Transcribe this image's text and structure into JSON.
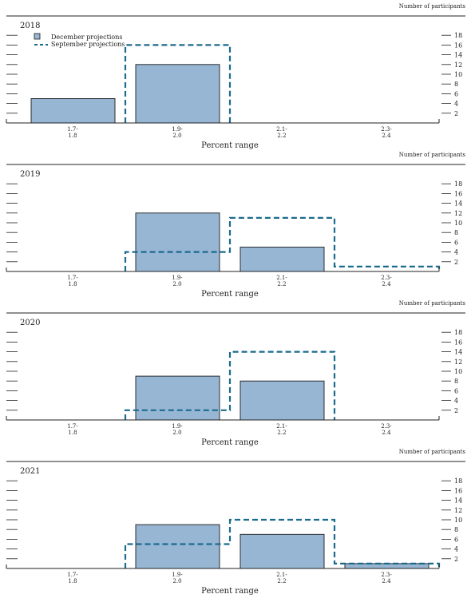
{
  "y_axis_label": "Number of participants",
  "x_axis_label": "Percent range",
  "legend": {
    "december": "December projections",
    "september": "September projections"
  },
  "colors": {
    "december_fill": "#97B6D4",
    "september_line": "#1B6B8E",
    "bar_stroke": "#1a1a1a"
  },
  "chart_data": [
    {
      "type": "bar",
      "title": "2018",
      "categories": [
        "1.7-\n1.8",
        "1.9-\n2.0",
        "2.1-\n2.2",
        "2.3-\n2.4"
      ],
      "series": [
        {
          "name": "December projections",
          "values": [
            5,
            12,
            0,
            0
          ]
        },
        {
          "name": "September projections",
          "values": [
            0,
            16,
            0,
            0
          ]
        }
      ],
      "xlabel": "Percent range",
      "ylabel": "Number of participants",
      "yticks": [
        2,
        4,
        6,
        8,
        10,
        12,
        14,
        16,
        18
      ],
      "ylim": [
        0,
        18
      ]
    },
    {
      "type": "bar",
      "title": "2019",
      "categories": [
        "1.7-\n1.8",
        "1.9-\n2.0",
        "2.1-\n2.2",
        "2.3-\n2.4"
      ],
      "series": [
        {
          "name": "December projections",
          "values": [
            0,
            12,
            5,
            0
          ]
        },
        {
          "name": "September projections",
          "values": [
            0,
            4,
            11,
            1
          ]
        }
      ],
      "xlabel": "Percent range",
      "ylabel": "Number of participants",
      "yticks": [
        2,
        4,
        6,
        8,
        10,
        12,
        14,
        16,
        18
      ],
      "ylim": [
        0,
        18
      ]
    },
    {
      "type": "bar",
      "title": "2020",
      "categories": [
        "1.7-\n1.8",
        "1.9-\n2.0",
        "2.1-\n2.2",
        "2.3-\n2.4"
      ],
      "series": [
        {
          "name": "December projections",
          "values": [
            0,
            9,
            8,
            0
          ]
        },
        {
          "name": "September projections",
          "values": [
            0,
            2,
            14,
            0
          ]
        }
      ],
      "xlabel": "Percent range",
      "ylabel": "Number of participants",
      "yticks": [
        2,
        4,
        6,
        8,
        10,
        12,
        14,
        16,
        18
      ],
      "ylim": [
        0,
        18
      ]
    },
    {
      "type": "bar",
      "title": "2021",
      "categories": [
        "1.7-\n1.8",
        "1.9-\n2.0",
        "2.1-\n2.2",
        "2.3-\n2.4"
      ],
      "series": [
        {
          "name": "December projections",
          "values": [
            0,
            9,
            7,
            1
          ]
        },
        {
          "name": "September projections",
          "values": [
            0,
            5,
            10,
            1
          ]
        }
      ],
      "xlabel": "Percent range",
      "ylabel": "Number of participants",
      "yticks": [
        2,
        4,
        6,
        8,
        10,
        12,
        14,
        16,
        18
      ],
      "ylim": [
        0,
        18
      ]
    }
  ]
}
